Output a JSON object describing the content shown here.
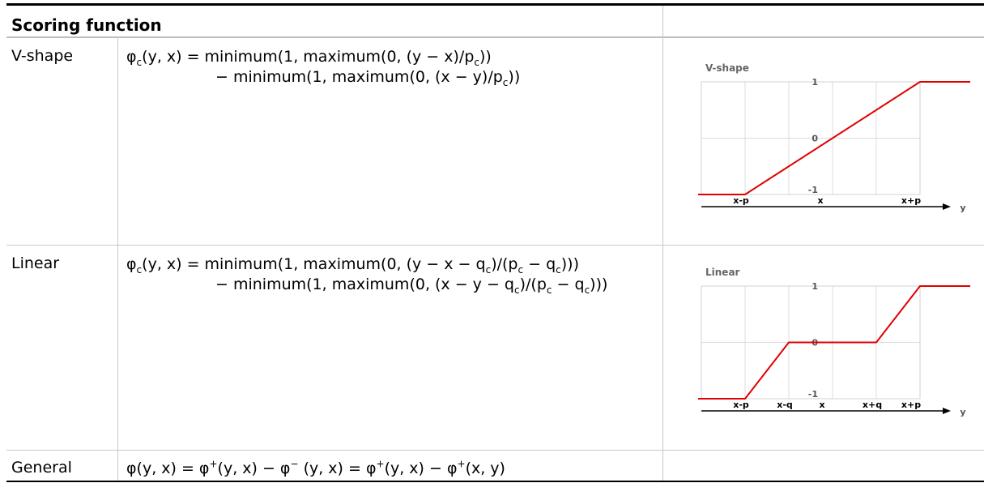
{
  "table": {
    "header": "Scoring function",
    "rows": [
      {
        "label": "V-shape",
        "formula_line1": "φ|c|(y, x) = minimum(1, maximum(0, (y − x)/p|c|))",
        "formula_line2": "− minimum(1, maximum(0, (x − y)/p|c|))"
      },
      {
        "label": "Linear",
        "formula_line1": "φ|c|(y, x) = minimum(1, maximum(0, (y − x − q|c|)/(p|c| − q|c|)))",
        "formula_line2": "− minimum(1, maximum(0, (x − y − q|c|)/(p|c| − q|c|)))"
      },
      {
        "label": "General",
        "formula_line1": "φ(y, x) = φ^+(y, x) − φ^− (y, x) = φ^+(y, x) − φ^+(x, y)"
      }
    ]
  },
  "chart_data": [
    {
      "type": "line",
      "title": "V-shape",
      "xlabel": "y",
      "tick_labels": [
        "x-p",
        "x",
        "x+p"
      ],
      "y_ticks": [
        1,
        0,
        -1
      ],
      "ylim": [
        -1,
        1
      ],
      "grid": true,
      "line_color": "#e00000",
      "series": [
        {
          "x": [
            "",
            "x-p",
            "x+p",
            ""
          ],
          "y": [
            -1,
            -1,
            1,
            1
          ]
        }
      ]
    },
    {
      "type": "line",
      "title": "Linear",
      "xlabel": "y",
      "tick_labels": [
        "x-p",
        "x-q",
        "x",
        "x+q",
        "x+p"
      ],
      "y_ticks": [
        1,
        0,
        -1
      ],
      "ylim": [
        -1,
        1
      ],
      "grid": true,
      "line_color": "#e00000",
      "series": [
        {
          "x": [
            "",
            "x-p",
            "x-q",
            "x+q",
            "x+p",
            ""
          ],
          "y": [
            -1,
            -1,
            0,
            0,
            1,
            1
          ]
        }
      ]
    }
  ]
}
